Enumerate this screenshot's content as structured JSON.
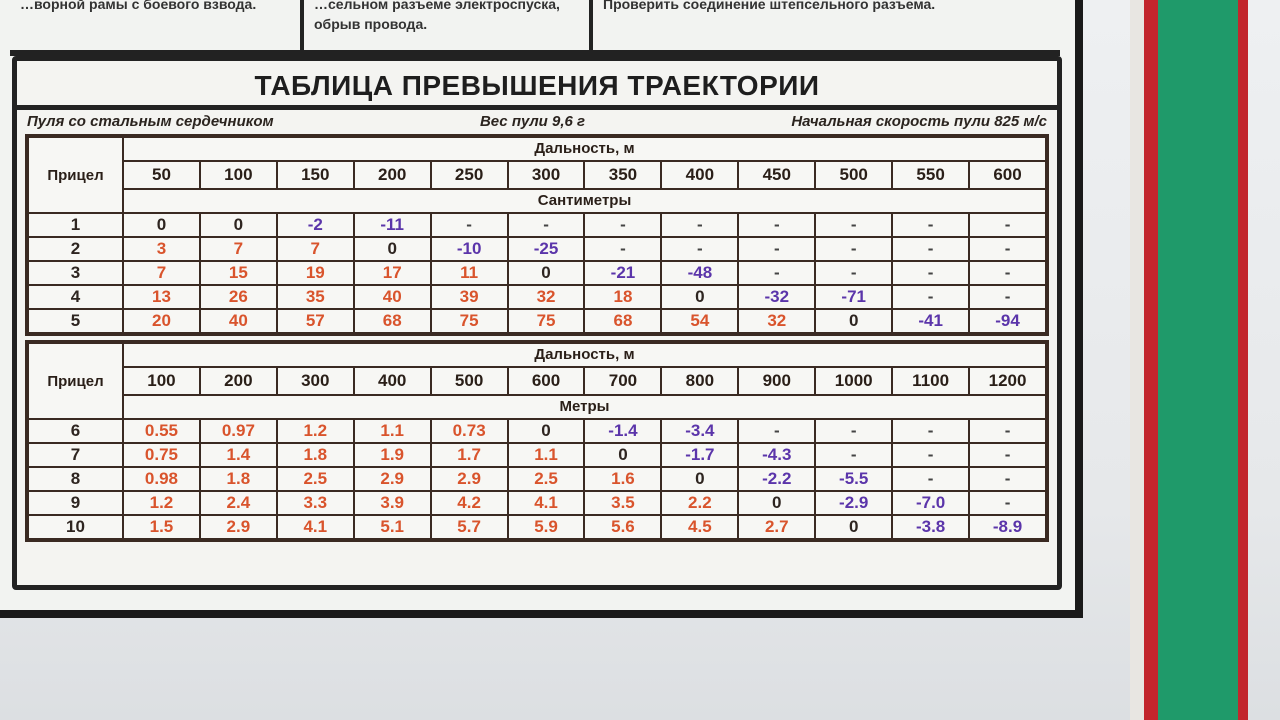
{
  "top_cells": [
    "…ворной рамы с боевого взвода.",
    "…сельном разъеме электроспуска, обрыв провода.",
    "Проверить соединение штепсельного разъема."
  ],
  "title": "ТАБЛИЦА ПРЕВЫШЕНИЯ ТРАЕКТОРИИ",
  "subtitle": {
    "bullet": "Пуля со стальным сердечником",
    "weight": "Вес пули 9,6 г",
    "velocity": "Начальная скорость пули 825 м/с"
  },
  "colors": {
    "positive": "#d9542c",
    "negative": "#5b35aa",
    "zero": "#2e2520"
  },
  "tables": [
    {
      "sight_label": "Прицел",
      "range_label": "Дальность, м",
      "unit_label": "Сантиметры",
      "ranges": [
        "50",
        "100",
        "150",
        "200",
        "250",
        "300",
        "350",
        "400",
        "450",
        "500",
        "550",
        "600"
      ],
      "rows": [
        {
          "sight": "1",
          "values": [
            "0",
            "0",
            "-2",
            "-11",
            "-",
            "-",
            "-",
            "-",
            "-",
            "-",
            "-",
            "-"
          ]
        },
        {
          "sight": "2",
          "values": [
            "3",
            "7",
            "7",
            "0",
            "-10",
            "-25",
            "-",
            "-",
            "-",
            "-",
            "-",
            "-"
          ]
        },
        {
          "sight": "3",
          "values": [
            "7",
            "15",
            "19",
            "17",
            "11",
            "0",
            "-21",
            "-48",
            "-",
            "-",
            "-",
            "-"
          ]
        },
        {
          "sight": "4",
          "values": [
            "13",
            "26",
            "35",
            "40",
            "39",
            "32",
            "18",
            "0",
            "-32",
            "-71",
            "-",
            "-"
          ]
        },
        {
          "sight": "5",
          "values": [
            "20",
            "40",
            "57",
            "68",
            "75",
            "75",
            "68",
            "54",
            "32",
            "0",
            "-41",
            "-94"
          ]
        }
      ]
    },
    {
      "sight_label": "Прицел",
      "range_label": "Дальность, м",
      "unit_label": "Метры",
      "ranges": [
        "100",
        "200",
        "300",
        "400",
        "500",
        "600",
        "700",
        "800",
        "900",
        "1000",
        "1100",
        "1200"
      ],
      "rows": [
        {
          "sight": "6",
          "values": [
            "0.55",
            "0.97",
            "1.2",
            "1.1",
            "0.73",
            "0",
            "-1.4",
            "-3.4",
            "-",
            "-",
            "-",
            "-"
          ]
        },
        {
          "sight": "7",
          "values": [
            "0.75",
            "1.4",
            "1.8",
            "1.9",
            "1.7",
            "1.1",
            "0",
            "-1.7",
            "-4.3",
            "-",
            "-",
            "-"
          ]
        },
        {
          "sight": "8",
          "values": [
            "0.98",
            "1.8",
            "2.5",
            "2.9",
            "2.9",
            "2.5",
            "1.6",
            "0",
            "-2.2",
            "-5.5",
            "-",
            "-"
          ]
        },
        {
          "sight": "9",
          "values": [
            "1.2",
            "2.4",
            "3.3",
            "3.9",
            "4.2",
            "4.1",
            "3.5",
            "2.2",
            "0",
            "-2.9",
            "-7.0",
            "-"
          ]
        },
        {
          "sight": "10",
          "values": [
            "1.5",
            "2.9",
            "4.1",
            "5.1",
            "5.7",
            "5.9",
            "5.6",
            "4.5",
            "2.7",
            "0",
            "-3.8",
            "-8.9"
          ]
        }
      ]
    }
  ]
}
